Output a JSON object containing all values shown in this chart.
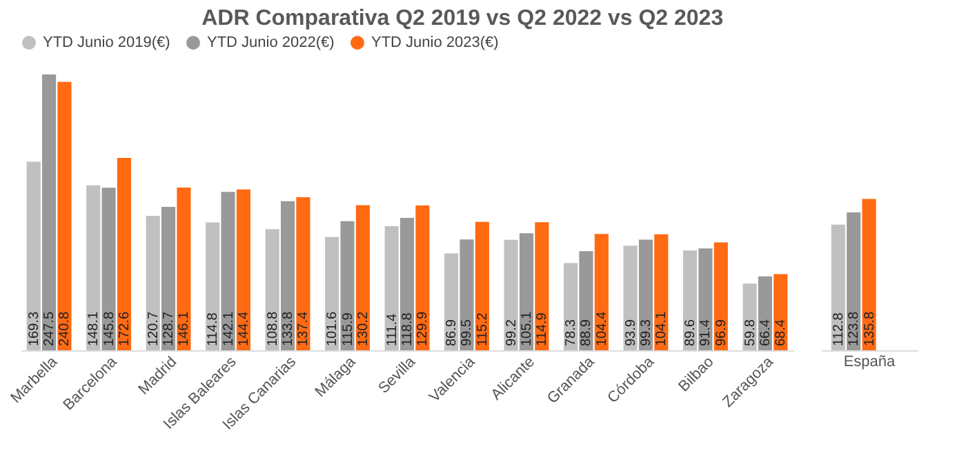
{
  "chart_data": [
    {
      "type": "bar",
      "title": "ADR Comparativa Q2 2019 vs Q2 2022 vs Q2 2023",
      "categories": [
        "Marbella",
        "Barcelona",
        "Madrid",
        "Islas Baleares",
        "Islas Canarias",
        "Málaga",
        "Sevilla",
        "Valencia",
        "Alicante",
        "Granada",
        "Córdoba",
        "Bilbao",
        "Zaragoza"
      ],
      "series": [
        {
          "name": "YTD Junio 2019(€)",
          "color": "#c0c0c0",
          "values": [
            169.3,
            148.1,
            120.7,
            114.8,
            108.8,
            101.6,
            111.4,
            86.9,
            99.2,
            78.3,
            93.9,
            89.6,
            59.8
          ]
        },
        {
          "name": "YTD Junio 2022(€)",
          "color": "#999999",
          "values": [
            247.5,
            145.8,
            128.7,
            142.1,
            133.8,
            115.9,
            118.8,
            99.5,
            105.1,
            88.9,
            99.3,
            91.4,
            66.4
          ]
        },
        {
          "name": "YTD Junio 2023(€)",
          "color": "#ff6a13",
          "values": [
            240.8,
            172.6,
            146.1,
            144.4,
            137.4,
            130.2,
            129.9,
            115.2,
            114.9,
            104.4,
            104.1,
            96.9,
            68.4
          ]
        }
      ],
      "data_labels": true,
      "legend": "top",
      "grid": false
    },
    {
      "type": "bar",
      "categories": [
        "España"
      ],
      "series": [
        {
          "color": "#c0c0c0",
          "values": [
            112.8
          ]
        },
        {
          "color": "#999999",
          "values": [
            123.8
          ]
        },
        {
          "color": "#ff6a13",
          "values": [
            135.8
          ]
        }
      ],
      "data_labels": true,
      "legend": false,
      "grid": false
    }
  ]
}
